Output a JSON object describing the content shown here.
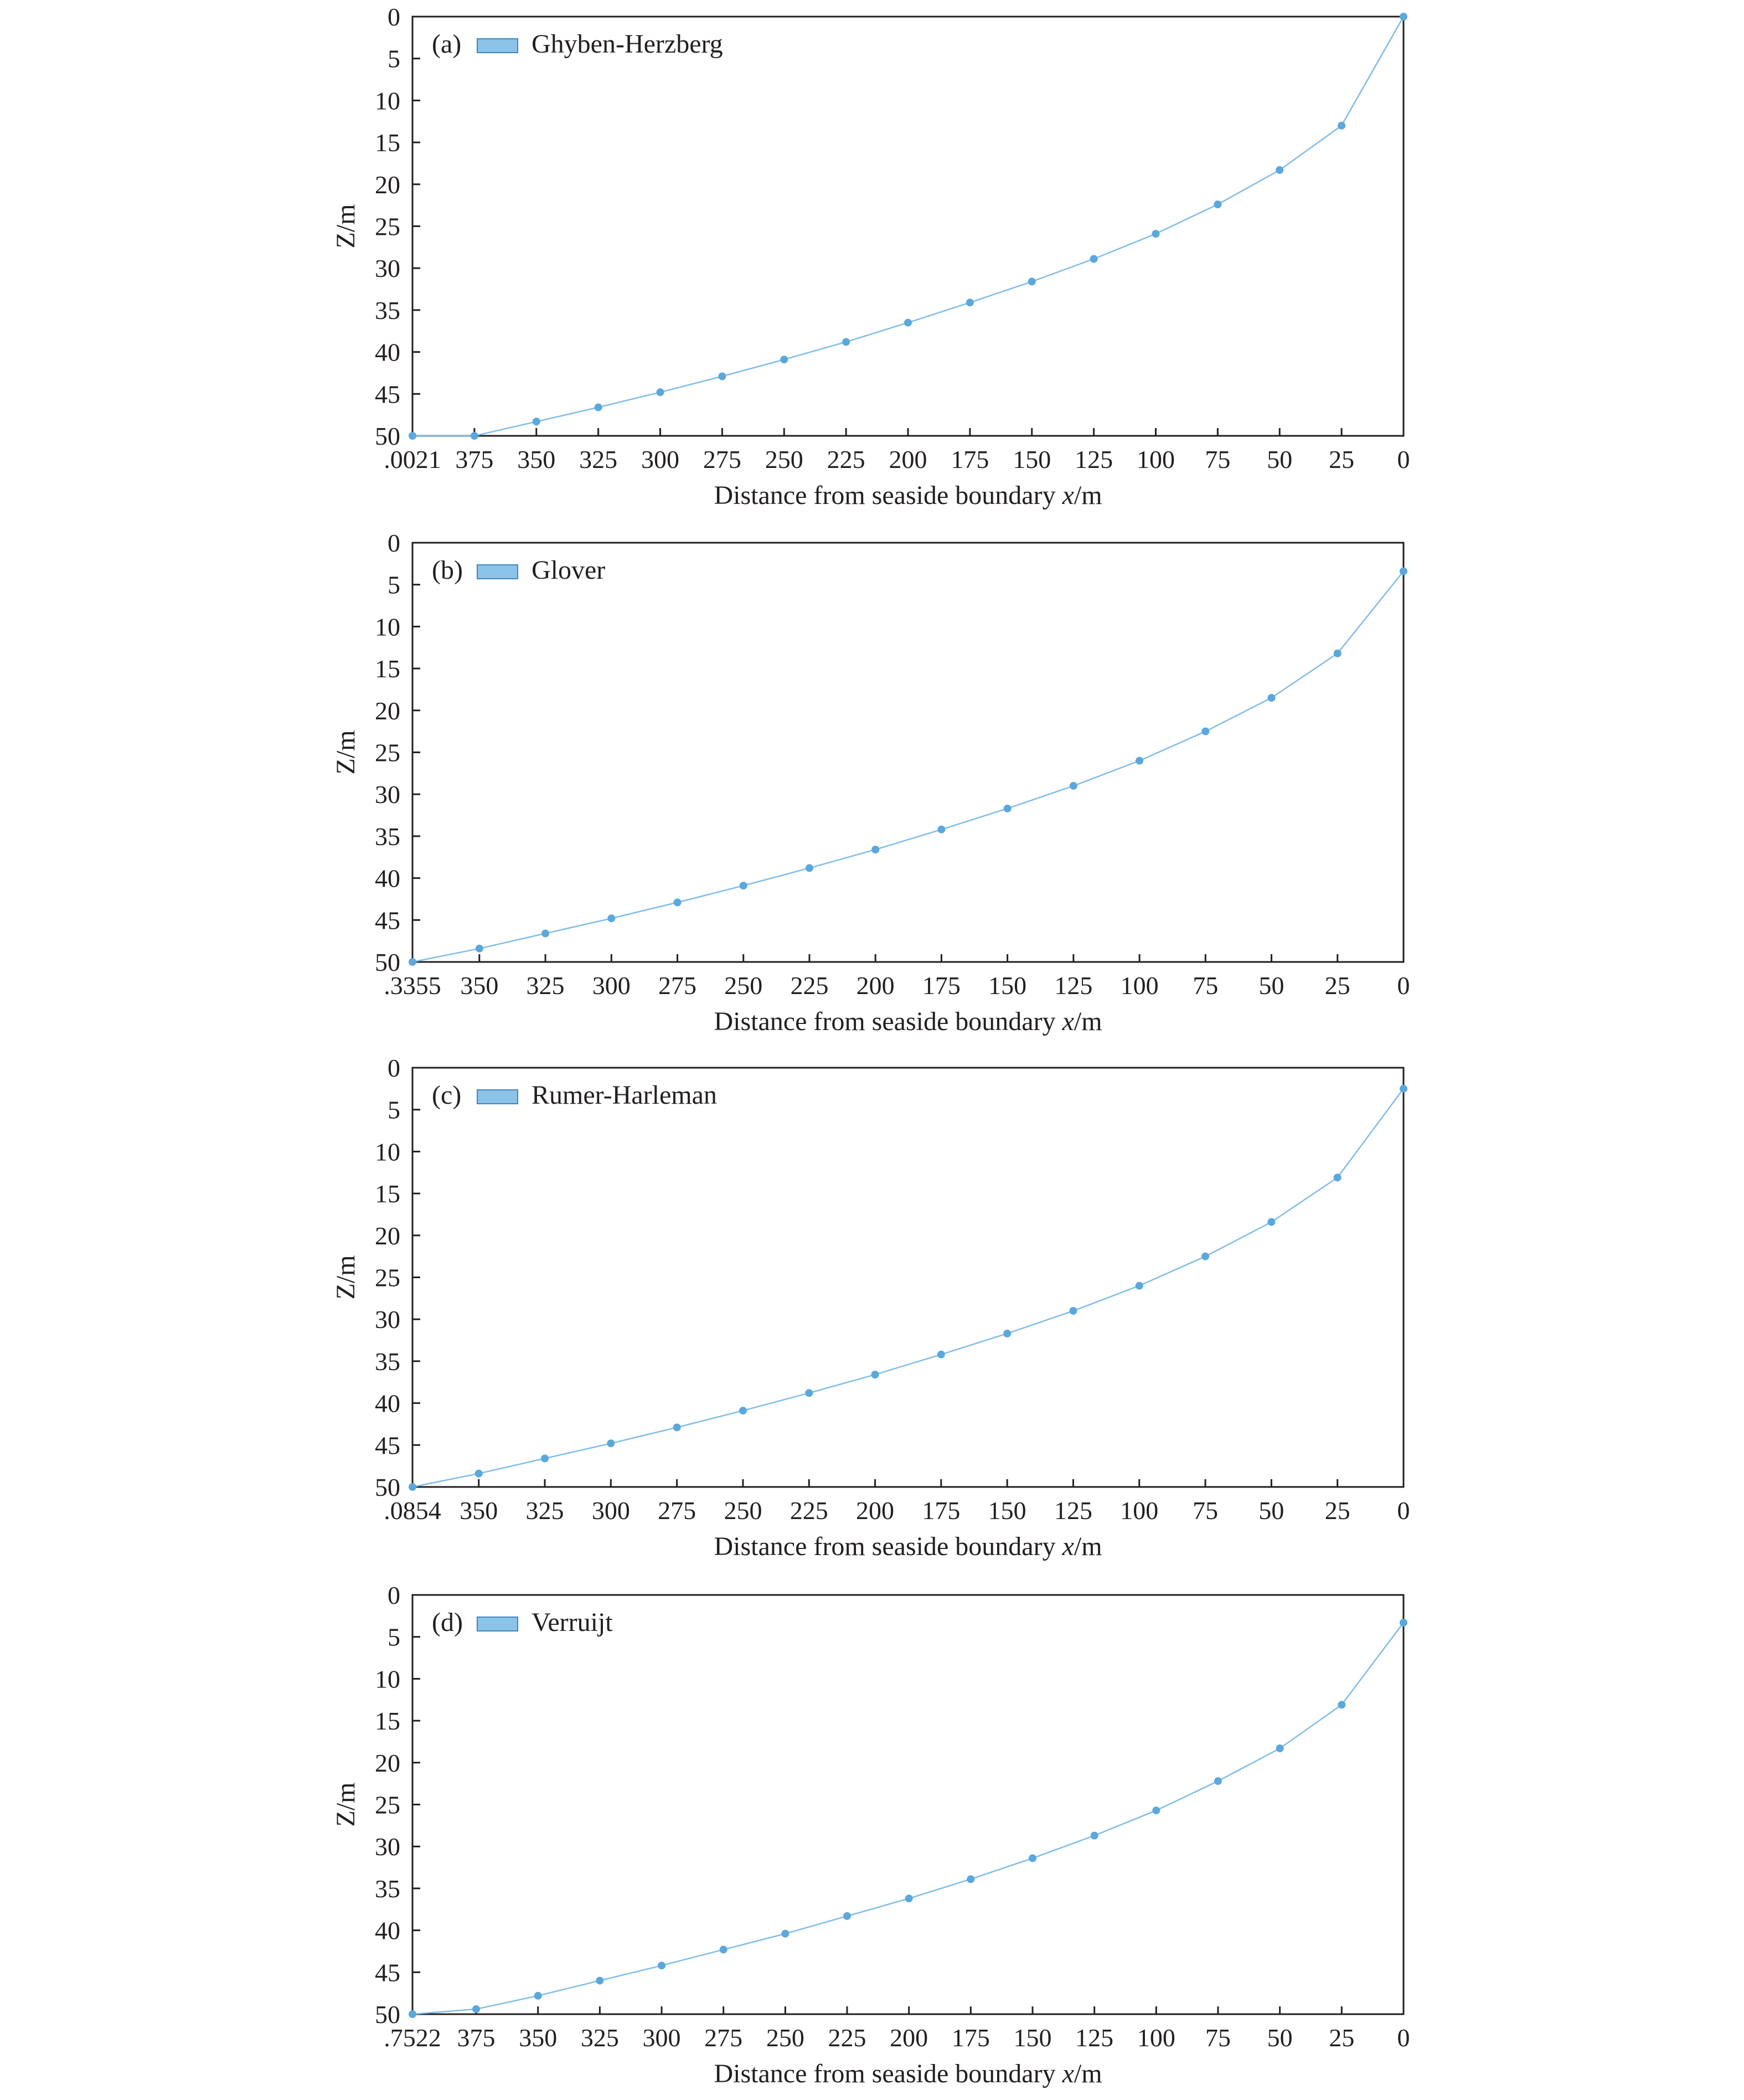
{
  "colors": {
    "series": "#5aa8dc",
    "series_line": "#7fbde6",
    "legend_fill": "#8cc3e8",
    "legend_edge": "#3d87bf",
    "axis": "#231f20"
  },
  "chart_data": [
    {
      "type": "line",
      "panel_label": "(a)",
      "legend": {
        "entries": [
          "Ghyben-Herzberg"
        ],
        "placement": "top-left"
      },
      "xlabel": "Distance from seaside boundary",
      "xlabel_var": "x",
      "xlabel_unit": "/m",
      "ylabel": "Z/m",
      "x_inverted": true,
      "y_inverted": true,
      "xlim": [
        400.0021,
        0
      ],
      "ylim": [
        0,
        50
      ],
      "x_ticks": [
        ".0021",
        "375",
        "350",
        "325",
        "300",
        "275",
        "250",
        "225",
        "200",
        "175",
        "150",
        "125",
        "100",
        "75",
        "50",
        "25",
        "0"
      ],
      "x_tick_values": [
        400.0021,
        375,
        350,
        325,
        300,
        275,
        250,
        225,
        200,
        175,
        150,
        125,
        100,
        75,
        50,
        25,
        0
      ],
      "y_ticks": [
        "0",
        "5",
        "10",
        "15",
        "20",
        "25",
        "30",
        "35",
        "40",
        "45",
        "50"
      ],
      "y_tick_values": [
        0,
        5,
        10,
        15,
        20,
        25,
        30,
        35,
        40,
        45,
        50
      ],
      "series": [
        {
          "x": [
            400,
            375,
            350,
            325,
            300,
            275,
            250,
            225,
            200,
            175,
            150,
            125,
            100,
            75,
            50,
            25,
            0
          ],
          "y": [
            50,
            50,
            48.3,
            46.6,
            44.8,
            42.9,
            40.9,
            38.8,
            36.5,
            34.1,
            31.6,
            28.9,
            25.9,
            22.4,
            18.3,
            13.0,
            0
          ]
        }
      ]
    },
    {
      "type": "line",
      "panel_label": "(b)",
      "legend": {
        "entries": [
          "Glover"
        ],
        "placement": "top-left"
      },
      "xlabel": "Distance from seaside boundary",
      "xlabel_var": "x",
      "xlabel_unit": "/m",
      "ylabel": "Z/m",
      "x_inverted": true,
      "y_inverted": true,
      "xlim": [
        375.3355,
        0
      ],
      "ylim": [
        0,
        50
      ],
      "x_ticks": [
        ".3355",
        "350",
        "325",
        "300",
        "275",
        "250",
        "225",
        "200",
        "175",
        "150",
        "125",
        "100",
        "75",
        "50",
        "25",
        "0"
      ],
      "x_tick_values": [
        375.3355,
        350,
        325,
        300,
        275,
        250,
        225,
        200,
        175,
        150,
        125,
        100,
        75,
        50,
        25,
        0
      ],
      "y_ticks": [
        "0",
        "5",
        "10",
        "15",
        "20",
        "25",
        "30",
        "35",
        "40",
        "45",
        "50"
      ],
      "y_tick_values": [
        0,
        5,
        10,
        15,
        20,
        25,
        30,
        35,
        40,
        45,
        50
      ],
      "series": [
        {
          "x": [
            375.3355,
            350,
            325,
            300,
            275,
            250,
            225,
            200,
            175,
            150,
            125,
            100,
            75,
            50,
            25,
            0
          ],
          "y": [
            50,
            48.4,
            46.6,
            44.8,
            42.9,
            40.9,
            38.8,
            36.6,
            34.2,
            31.7,
            29.0,
            26.0,
            22.5,
            18.5,
            13.2,
            3.4
          ]
        }
      ]
    },
    {
      "type": "line",
      "panel_label": "(c)",
      "legend": {
        "entries": [
          "Rumer-Harleman"
        ],
        "placement": "top-left"
      },
      "xlabel": "Distance from seaside boundary",
      "xlabel_var": "x",
      "xlabel_unit": "/m",
      "ylabel": "Z/m",
      "x_inverted": true,
      "y_inverted": true,
      "xlim": [
        375.0854,
        0
      ],
      "ylim": [
        0,
        50
      ],
      "x_ticks": [
        ".0854",
        "350",
        "325",
        "300",
        "275",
        "250",
        "225",
        "200",
        "175",
        "150",
        "125",
        "100",
        "75",
        "50",
        "25",
        "0"
      ],
      "x_tick_values": [
        375.0854,
        350,
        325,
        300,
        275,
        250,
        225,
        200,
        175,
        150,
        125,
        100,
        75,
        50,
        25,
        0
      ],
      "y_ticks": [
        "0",
        "5",
        "10",
        "15",
        "20",
        "25",
        "30",
        "35",
        "40",
        "45",
        "50"
      ],
      "y_tick_values": [
        0,
        5,
        10,
        15,
        20,
        25,
        30,
        35,
        40,
        45,
        50
      ],
      "series": [
        {
          "x": [
            375.0854,
            350,
            325,
            300,
            275,
            250,
            225,
            200,
            175,
            150,
            125,
            100,
            75,
            50,
            25,
            0
          ],
          "y": [
            50,
            48.4,
            46.6,
            44.8,
            42.9,
            40.9,
            38.8,
            36.6,
            34.2,
            31.7,
            29.0,
            26.0,
            22.5,
            18.4,
            13.1,
            2.5
          ]
        }
      ]
    },
    {
      "type": "line",
      "panel_label": "(d)",
      "legend": {
        "entries": [
          "Verruijt"
        ],
        "placement": "top-left"
      },
      "xlabel": "Distance from seaside boundary",
      "xlabel_var": "x",
      "xlabel_unit": "/m",
      "ylabel": "Z/m",
      "x_inverted": true,
      "y_inverted": true,
      "xlim": [
        400.7522,
        0
      ],
      "ylim": [
        0,
        50
      ],
      "x_ticks": [
        ".7522",
        "375",
        "350",
        "325",
        "300",
        "275",
        "250",
        "225",
        "200",
        "175",
        "150",
        "125",
        "100",
        "75",
        "50",
        "25",
        "0"
      ],
      "x_tick_values": [
        400.7522,
        375,
        350,
        325,
        300,
        275,
        250,
        225,
        200,
        175,
        150,
        125,
        100,
        75,
        50,
        25,
        0
      ],
      "y_ticks": [
        "0",
        "5",
        "10",
        "15",
        "20",
        "25",
        "30",
        "35",
        "40",
        "45",
        "50"
      ],
      "y_tick_values": [
        0,
        5,
        10,
        15,
        20,
        25,
        30,
        35,
        40,
        45,
        50
      ],
      "series": [
        {
          "x": [
            400.7522,
            375,
            350,
            325,
            300,
            275,
            250,
            225,
            200,
            175,
            150,
            125,
            100,
            75,
            50,
            25,
            0
          ],
          "y": [
            50,
            49.4,
            47.8,
            46.0,
            44.2,
            42.3,
            40.4,
            38.3,
            36.2,
            33.9,
            31.4,
            28.7,
            25.7,
            22.2,
            18.3,
            13.1,
            3.3
          ]
        }
      ]
    }
  ]
}
